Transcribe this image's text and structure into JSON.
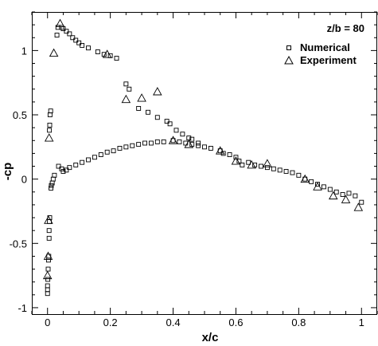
{
  "chart_data": {
    "type": "scatter",
    "title": "",
    "xlabel": "x/c",
    "ylabel": "-cp",
    "xlim": [
      -0.05,
      1.05
    ],
    "ylim": [
      -1.05,
      1.3
    ],
    "xticks": [
      0,
      0.2,
      0.4,
      0.6,
      0.8,
      1
    ],
    "xtick_labels": [
      "0",
      "0.2",
      "0.4",
      "0.6",
      "0.8",
      "1"
    ],
    "yticks": [
      -1,
      -0.5,
      0,
      0.5,
      1
    ],
    "ytick_labels": [
      "-1",
      "-0.5",
      "0",
      "0.5",
      "1"
    ],
    "annotation": "z/b = 80",
    "legend_position": "top-right",
    "series": [
      {
        "name": "Numerical",
        "marker": "square",
        "points": [
          [
            0.0,
            -0.89
          ],
          [
            0.0,
            -0.86
          ],
          [
            0.0,
            -0.83
          ],
          [
            0.001,
            -0.78
          ],
          [
            0.002,
            -0.7
          ],
          [
            0.003,
            -0.63
          ],
          [
            0.004,
            -0.6
          ],
          [
            0.005,
            -0.46
          ],
          [
            0.005,
            -0.4
          ],
          [
            0.006,
            -0.33
          ],
          [
            0.007,
            -0.3
          ],
          [
            0.006,
            0.38
          ],
          [
            0.007,
            0.42
          ],
          [
            0.008,
            0.5
          ],
          [
            0.01,
            0.53
          ],
          [
            0.011,
            -0.07
          ],
          [
            0.012,
            -0.05
          ],
          [
            0.015,
            -0.03
          ],
          [
            0.018,
            0.0
          ],
          [
            0.022,
            0.03
          ],
          [
            0.03,
            1.12
          ],
          [
            0.033,
            1.18
          ],
          [
            0.045,
            1.18
          ],
          [
            0.05,
            1.17
          ],
          [
            0.06,
            1.15
          ],
          [
            0.07,
            1.13
          ],
          [
            0.08,
            1.1
          ],
          [
            0.09,
            1.08
          ],
          [
            0.1,
            1.06
          ],
          [
            0.11,
            1.04
          ],
          [
            0.13,
            1.02
          ],
          [
            0.16,
            0.99
          ],
          [
            0.18,
            0.97
          ],
          [
            0.2,
            0.96
          ],
          [
            0.22,
            0.94
          ],
          [
            0.25,
            0.74
          ],
          [
            0.26,
            0.7
          ],
          [
            0.29,
            0.55
          ],
          [
            0.32,
            0.52
          ],
          [
            0.35,
            0.48
          ],
          [
            0.38,
            0.45
          ],
          [
            0.39,
            0.43
          ],
          [
            0.41,
            0.38
          ],
          [
            0.43,
            0.35
          ],
          [
            0.45,
            0.32
          ],
          [
            0.46,
            0.31
          ],
          [
            0.48,
            0.28
          ],
          [
            0.035,
            0.1
          ],
          [
            0.045,
            0.08
          ],
          [
            0.05,
            0.06
          ],
          [
            0.06,
            0.07
          ],
          [
            0.07,
            0.09
          ],
          [
            0.09,
            0.11
          ],
          [
            0.11,
            0.13
          ],
          [
            0.13,
            0.15
          ],
          [
            0.15,
            0.17
          ],
          [
            0.17,
            0.19
          ],
          [
            0.19,
            0.21
          ],
          [
            0.21,
            0.22
          ],
          [
            0.23,
            0.24
          ],
          [
            0.25,
            0.25
          ],
          [
            0.27,
            0.26
          ],
          [
            0.29,
            0.27
          ],
          [
            0.31,
            0.28
          ],
          [
            0.33,
            0.28
          ],
          [
            0.35,
            0.29
          ],
          [
            0.37,
            0.29
          ],
          [
            0.4,
            0.3
          ],
          [
            0.42,
            0.29
          ],
          [
            0.44,
            0.28
          ],
          [
            0.46,
            0.27
          ],
          [
            0.48,
            0.26
          ],
          [
            0.5,
            0.25
          ],
          [
            0.52,
            0.24
          ],
          [
            0.55,
            0.22
          ],
          [
            0.56,
            0.2
          ],
          [
            0.58,
            0.19
          ],
          [
            0.6,
            0.17
          ],
          [
            0.61,
            0.14
          ],
          [
            0.62,
            0.11
          ],
          [
            0.64,
            0.13
          ],
          [
            0.66,
            0.11
          ],
          [
            0.68,
            0.1
          ],
          [
            0.7,
            0.09
          ],
          [
            0.72,
            0.08
          ],
          [
            0.74,
            0.07
          ],
          [
            0.76,
            0.06
          ],
          [
            0.78,
            0.05
          ],
          [
            0.8,
            0.03
          ],
          [
            0.82,
            0.0
          ],
          [
            0.84,
            -0.02
          ],
          [
            0.86,
            -0.04
          ],
          [
            0.88,
            -0.06
          ],
          [
            0.9,
            -0.08
          ],
          [
            0.92,
            -0.1
          ],
          [
            0.94,
            -0.12
          ],
          [
            0.96,
            -0.11
          ],
          [
            0.98,
            -0.13
          ],
          [
            1.0,
            -0.18
          ]
        ]
      },
      {
        "name": "Experiment",
        "marker": "triangle",
        "points": [
          [
            0.0,
            -0.75
          ],
          [
            0.002,
            -0.6
          ],
          [
            0.003,
            -0.32
          ],
          [
            0.005,
            0.32
          ],
          [
            0.02,
            0.98
          ],
          [
            0.04,
            1.21
          ],
          [
            0.19,
            0.97
          ],
          [
            0.25,
            0.62
          ],
          [
            0.3,
            0.63
          ],
          [
            0.35,
            0.68
          ],
          [
            0.4,
            0.3
          ],
          [
            0.45,
            0.27
          ],
          [
            0.55,
            0.22
          ],
          [
            0.6,
            0.14
          ],
          [
            0.65,
            0.11
          ],
          [
            0.7,
            0.12
          ],
          [
            0.82,
            0.0
          ],
          [
            0.86,
            -0.06
          ],
          [
            0.91,
            -0.13
          ],
          [
            0.95,
            -0.16
          ],
          [
            0.99,
            -0.22
          ]
        ]
      }
    ]
  }
}
